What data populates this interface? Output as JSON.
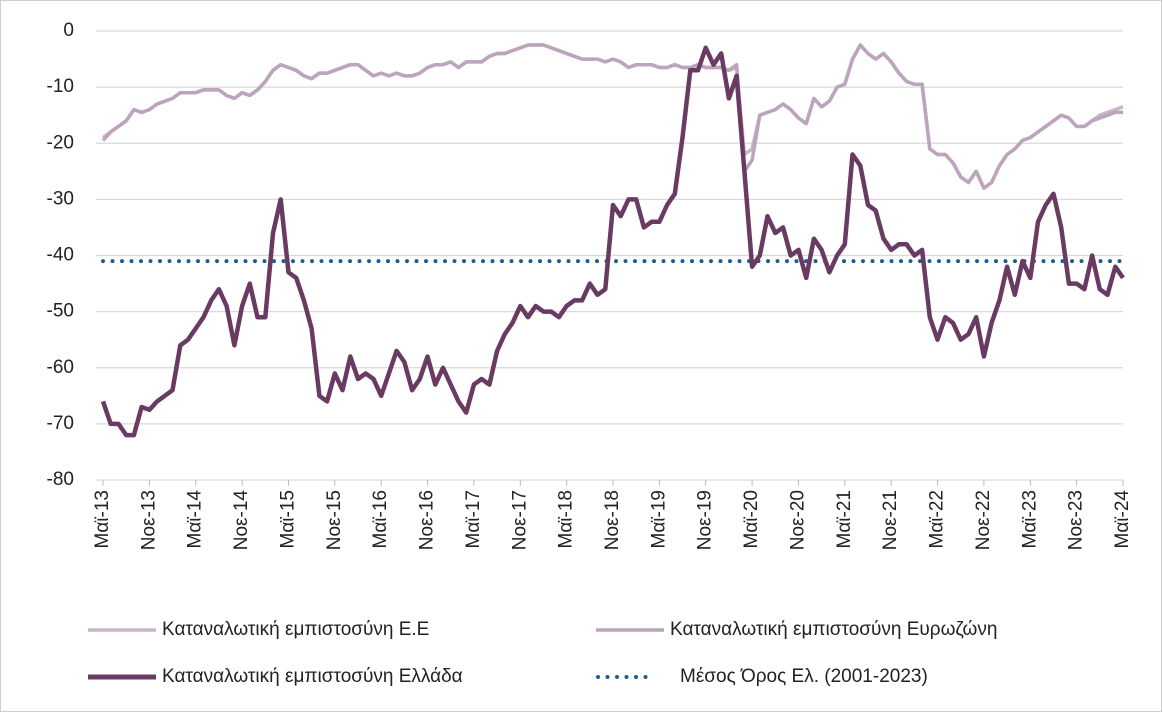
{
  "chart_data": {
    "type": "line",
    "categories": [
      "Μαϊ-13",
      null,
      null,
      null,
      null,
      null,
      "Νοε-13",
      null,
      null,
      null,
      null,
      null,
      "Μαϊ-14",
      null,
      null,
      null,
      null,
      null,
      "Νοε-14",
      null,
      null,
      null,
      null,
      null,
      "Μαϊ-15",
      null,
      null,
      null,
      null,
      null,
      "Νοε-15",
      null,
      null,
      null,
      null,
      null,
      "Μαϊ-16",
      null,
      null,
      null,
      null,
      null,
      "Νοε-16",
      null,
      null,
      null,
      null,
      null,
      "Μαϊ-17",
      null,
      null,
      null,
      null,
      null,
      "Νοε-17",
      null,
      null,
      null,
      null,
      null,
      "Μαϊ-18",
      null,
      null,
      null,
      null,
      null,
      "Νοε-18",
      null,
      null,
      null,
      null,
      null,
      "Μαϊ-19",
      null,
      null,
      null,
      null,
      null,
      "Νοε-19",
      null,
      null,
      null,
      null,
      null,
      "Μαϊ-20",
      null,
      null,
      null,
      null,
      null,
      "Νοε-20",
      null,
      null,
      null,
      null,
      null,
      "Μαϊ-21",
      null,
      null,
      null,
      null,
      null,
      "Νοε-21",
      null,
      null,
      null,
      null,
      null,
      "Μαϊ-22",
      null,
      null,
      null,
      null,
      null,
      "Νοε-22",
      null,
      null,
      null,
      null,
      null,
      "Μαϊ-23",
      null,
      null,
      null,
      null,
      null,
      "Νοε-23",
      null,
      null,
      null,
      null,
      null,
      "Μαϊ-24"
    ],
    "series": [
      {
        "name": "Καταναλωτική εμπιστοσύνη Ε.Ε",
        "color": "#c9b4c9",
        "values": [
          -19,
          -18,
          -17,
          -16,
          -14,
          -14.5,
          -14,
          -13,
          -12.5,
          -12,
          -11,
          -11,
          -11,
          -10.5,
          -10.5,
          -10.5,
          -11.5,
          -12,
          -11,
          -11.5,
          -10.5,
          -9,
          -7,
          -6,
          -6.5,
          -7,
          -8,
          -8.5,
          -7.5,
          -7.5,
          -7,
          -6.5,
          -6,
          -6,
          -7,
          -8,
          -7.5,
          -8,
          -7.5,
          -8,
          -8,
          -7.5,
          -6.5,
          -6,
          -6,
          -5.5,
          -6.5,
          -5.5,
          -5.5,
          -5.5,
          -4.5,
          -4,
          -4,
          -3.5,
          -3,
          -2.5,
          -2.5,
          -2.5,
          -3,
          -3.5,
          -4,
          -4.5,
          -5,
          -5,
          -5,
          -5.5,
          -5,
          -5.5,
          -6.5,
          -6,
          -6,
          -6,
          -6.5,
          -6.5,
          -6,
          -6.5,
          -6.5,
          -6,
          -6.5,
          -6.5,
          -6.5,
          -7,
          -6.5,
          -22,
          -21,
          -15,
          -14.5,
          -14,
          -13,
          -14,
          -15.5,
          -16.5,
          -12,
          -13.5,
          -12.5,
          -10,
          -9.5,
          -5,
          -2.5,
          -4,
          -5,
          -4,
          -5.5,
          -7.5,
          -9,
          -9.5,
          -9.5,
          -21,
          -22,
          -22,
          -23.5,
          -26,
          -27,
          -25,
          -28,
          -27,
          -24,
          -22,
          -21,
          -19.5,
          -19,
          -18,
          -17,
          -16,
          -15,
          -15.5,
          -17,
          -17,
          -16,
          -15,
          -14.5,
          -14,
          -13.5
        ]
      },
      {
        "name": "Καταναλωτική εμπιστοσύνη Ευρωζώνη",
        "color": "#bca5bc",
        "values": [
          -19.5,
          -18,
          -17,
          -16,
          -14,
          -14.5,
          -14,
          -13,
          -12.5,
          -12,
          -11,
          -11,
          -11,
          -10.5,
          -10.5,
          -10.5,
          -11.5,
          -12,
          -11,
          -11.5,
          -10.5,
          -9,
          -7,
          -6,
          -6.5,
          -7,
          -8,
          -8.5,
          -7.5,
          -7.5,
          -7,
          -6.5,
          -6,
          -6,
          -7,
          -8,
          -7.5,
          -8,
          -7.5,
          -8,
          -8,
          -7.5,
          -6.5,
          -6,
          -6,
          -5.5,
          -6.5,
          -5.5,
          -5.5,
          -5.5,
          -4.5,
          -4,
          -4,
          -3.5,
          -3,
          -2.5,
          -2.5,
          -2.5,
          -3,
          -3.5,
          -4,
          -4.5,
          -5,
          -5,
          -5,
          -5.5,
          -5,
          -5.5,
          -6.5,
          -6,
          -6,
          -6,
          -6.5,
          -6.5,
          -6,
          -6.5,
          -6.5,
          -6,
          -6.5,
          -6.5,
          -6.5,
          -7,
          -6,
          -25,
          -23,
          -15,
          -14.5,
          -14,
          -13,
          -14,
          -15.5,
          -16.5,
          -12,
          -13.5,
          -12.5,
          -10,
          -9.5,
          -5,
          -2.5,
          -4,
          -5,
          -4,
          -5.5,
          -7.5,
          -9,
          -9.5,
          -9.5,
          -21,
          -22,
          -22,
          -23.5,
          -26,
          -27,
          -25,
          -28,
          -27,
          -24,
          -22,
          -21,
          -19.5,
          -19,
          -18,
          -17,
          -16,
          -15,
          -15.5,
          -17,
          -17,
          -16,
          -15.5,
          -15,
          -14.5,
          -14.5
        ]
      },
      {
        "name": "Καταναλωτική εμπιστοσύνη Ελλάδα",
        "color": "#6a3b62",
        "values": [
          -66,
          -70,
          -70,
          -72,
          -72,
          -67,
          -67.5,
          -66,
          -65,
          -64,
          -56,
          -55,
          -53,
          -51,
          -48,
          -46,
          -49,
          -56,
          -49,
          -45,
          -51,
          -51,
          -36,
          -30,
          -43,
          -44,
          -48,
          -53,
          -65,
          -66,
          -61,
          -64,
          -58,
          -62,
          -61,
          -62,
          -65,
          -61,
          -57,
          -59,
          -64,
          -62,
          -58,
          -63,
          -60,
          -63,
          -66,
          -68,
          -63,
          -62,
          -63,
          -57,
          -54,
          -52,
          -49,
          -51,
          -49,
          -50,
          -50,
          -51,
          -49,
          -48,
          -48,
          -45,
          -47,
          -46,
          -31,
          -33,
          -30,
          -30,
          -35,
          -34,
          -34,
          -31,
          -29,
          -19,
          -7,
          -7,
          -3,
          -6,
          -4,
          -12,
          -8,
          -25,
          -42,
          -40,
          -33,
          -36,
          -35,
          -40,
          -39,
          -44,
          -37,
          -39,
          -43,
          -40,
          -38,
          -22,
          -24,
          -31,
          -32,
          -37,
          -39,
          -38,
          -38,
          -40,
          -39,
          -51,
          -55,
          -51,
          -52,
          -55,
          -54,
          -51,
          -58,
          -52,
          -48,
          -42,
          -47,
          -41,
          -44,
          -34,
          -31,
          -29,
          -35,
          -45,
          -45,
          -46,
          -40,
          -46,
          -47,
          -42,
          -44
        ]
      }
    ],
    "reference_line": {
      "name": "Μέσος Όρος Ελ. (2001-2023)",
      "value": -41,
      "color": "#1f5e8c"
    },
    "ylim": [
      -80,
      0
    ],
    "yticks": [
      -80,
      -70,
      -60,
      -50,
      -40,
      -30,
      -20,
      -10,
      0
    ],
    "grid": true
  }
}
